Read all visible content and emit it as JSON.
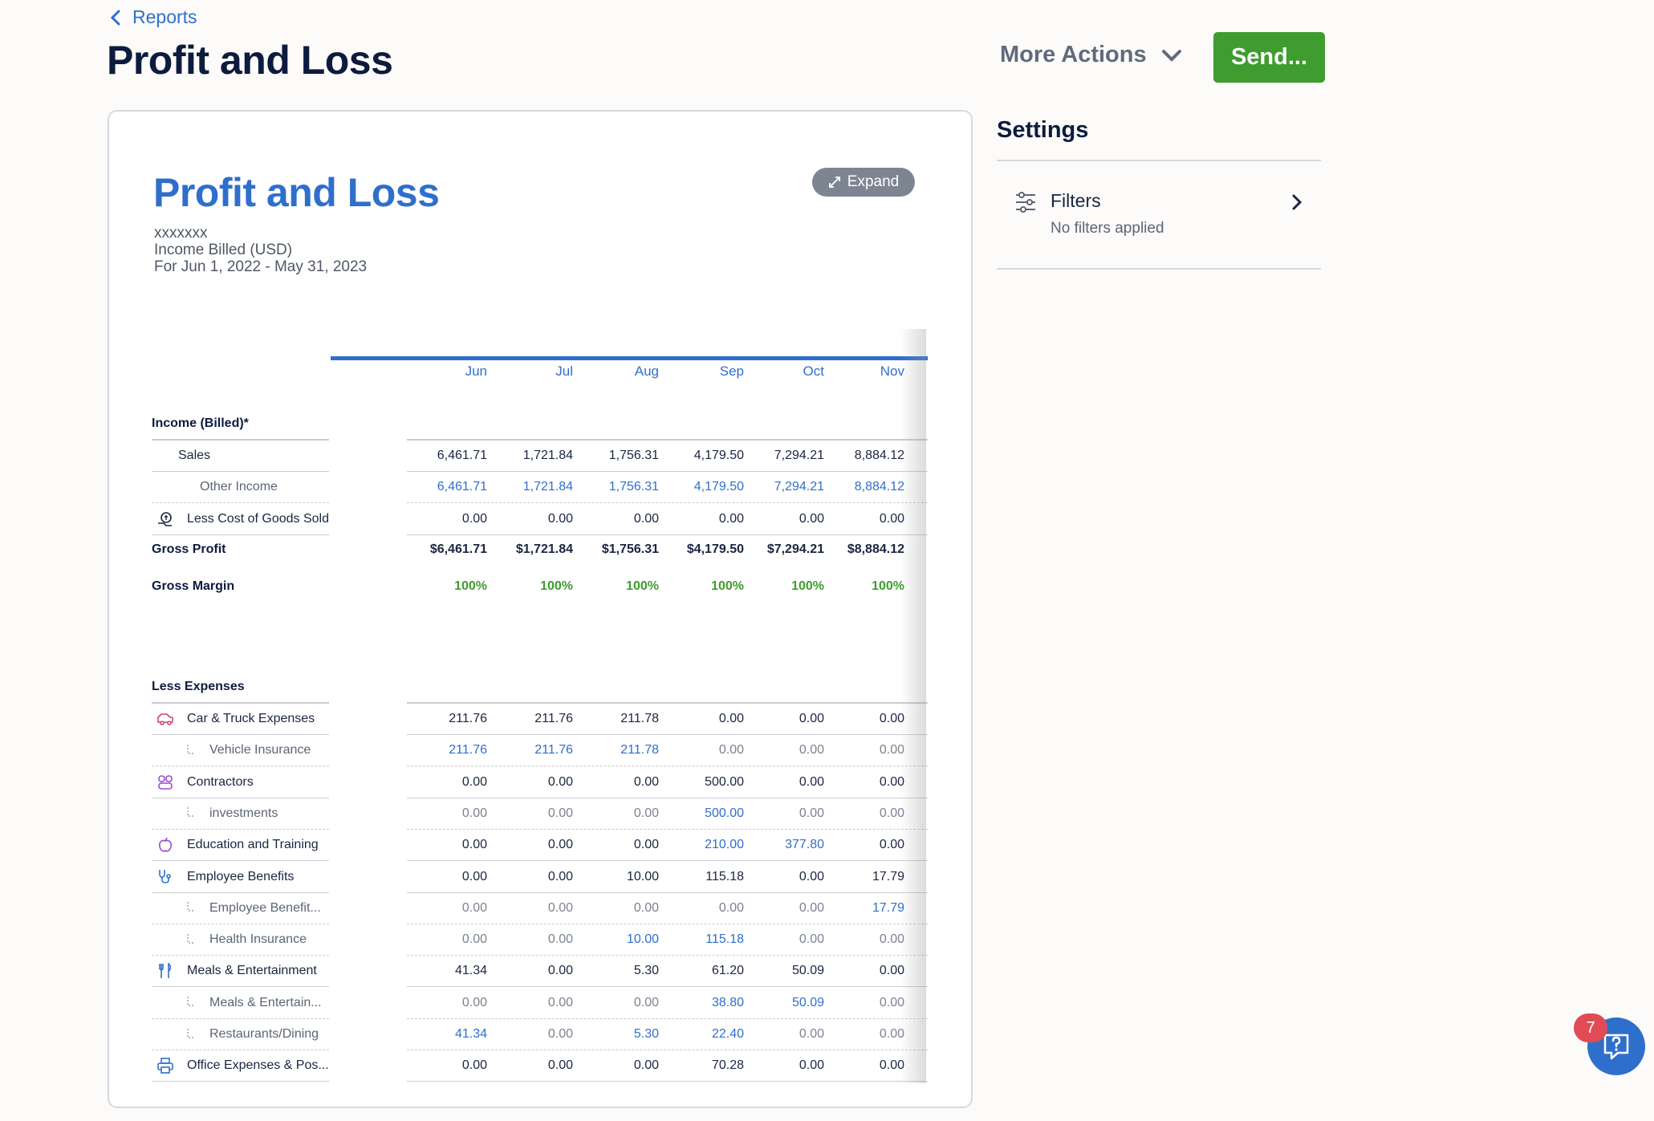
{
  "header": {
    "back_label": "Reports",
    "title": "Profit and Loss",
    "more_actions": "More Actions",
    "send": "Send..."
  },
  "report": {
    "title": "Profit and Loss",
    "expand": "Expand",
    "company": "xxxxxxx",
    "basis": "Income Billed (USD)",
    "period": "For Jun 1, 2022 - May 31, 2023",
    "months": [
      "Jun",
      "Jul",
      "Aug",
      "Sep",
      "Oct",
      "Nov"
    ],
    "income": {
      "heading": "Income (Billed)*",
      "rows": [
        {
          "label": "Sales",
          "sub": false,
          "icon": "",
          "values": [
            "6,461.71",
            "1,721.84",
            "1,756.31",
            "4,179.50",
            "7,294.21",
            "8,884.12"
          ],
          "styles": [
            "",
            "",
            "",
            "",
            "",
            ""
          ]
        },
        {
          "label": "Other Income",
          "sub": true,
          "icon": "",
          "values": [
            "6,461.71",
            "1,721.84",
            "1,756.31",
            "4,179.50",
            "7,294.21",
            "8,884.12"
          ],
          "styles": [
            "blue",
            "blue",
            "blue",
            "blue",
            "blue",
            "blue"
          ]
        },
        {
          "label": "Less Cost of Goods Sold",
          "sub": false,
          "icon": "goods-icon",
          "values": [
            "0.00",
            "0.00",
            "0.00",
            "0.00",
            "0.00",
            "0.00"
          ],
          "styles": [
            "",
            "",
            "",
            "",
            "",
            ""
          ]
        }
      ],
      "gross_profit_label": "Gross Profit",
      "gross_profit": [
        "$6,461.71",
        "$1,721.84",
        "$1,756.31",
        "$4,179.50",
        "$7,294.21",
        "$8,884.12"
      ],
      "gross_margin_label": "Gross Margin",
      "gross_margin": [
        "100%",
        "100%",
        "100%",
        "100%",
        "100%",
        "100%"
      ]
    },
    "expenses": {
      "heading": "Less Expenses",
      "rows": [
        {
          "label": "Car & Truck Expenses",
          "sub": false,
          "icon": "car-icon",
          "values": [
            "211.76",
            "211.76",
            "211.78",
            "0.00",
            "0.00",
            "0.00"
          ],
          "styles": [
            "",
            "",
            "",
            "",
            "",
            ""
          ]
        },
        {
          "label": "Vehicle Insurance",
          "sub": true,
          "icon": "",
          "values": [
            "211.76",
            "211.76",
            "211.78",
            "0.00",
            "0.00",
            "0.00"
          ],
          "styles": [
            "blue",
            "blue",
            "blue",
            "grey",
            "grey",
            "grey"
          ]
        },
        {
          "label": "Contractors",
          "sub": false,
          "icon": "contractors-icon",
          "values": [
            "0.00",
            "0.00",
            "0.00",
            "500.00",
            "0.00",
            "0.00"
          ],
          "styles": [
            "",
            "",
            "",
            "",
            "",
            ""
          ]
        },
        {
          "label": "investments",
          "sub": true,
          "icon": "",
          "values": [
            "0.00",
            "0.00",
            "0.00",
            "500.00",
            "0.00",
            "0.00"
          ],
          "styles": [
            "grey",
            "grey",
            "grey",
            "blue",
            "grey",
            "grey"
          ]
        },
        {
          "label": "Education and Training",
          "sub": false,
          "icon": "apple-icon",
          "values": [
            "0.00",
            "0.00",
            "0.00",
            "210.00",
            "377.80",
            "0.00"
          ],
          "styles": [
            "",
            "",
            "",
            "blue",
            "blue",
            ""
          ]
        },
        {
          "label": "Employee Benefits",
          "sub": false,
          "icon": "stethoscope-icon",
          "values": [
            "0.00",
            "0.00",
            "10.00",
            "115.18",
            "0.00",
            "17.79"
          ],
          "styles": [
            "",
            "",
            "",
            "",
            "",
            ""
          ]
        },
        {
          "label": "Employee Benefit...",
          "sub": true,
          "icon": "",
          "values": [
            "0.00",
            "0.00",
            "0.00",
            "0.00",
            "0.00",
            "17.79"
          ],
          "styles": [
            "grey",
            "grey",
            "grey",
            "grey",
            "grey",
            "blue"
          ]
        },
        {
          "label": "Health Insurance",
          "sub": true,
          "icon": "",
          "values": [
            "0.00",
            "0.00",
            "10.00",
            "115.18",
            "0.00",
            "0.00"
          ],
          "styles": [
            "grey",
            "grey",
            "blue",
            "blue",
            "grey",
            "grey"
          ]
        },
        {
          "label": "Meals & Entertainment",
          "sub": false,
          "icon": "utensils-icon",
          "values": [
            "41.34",
            "0.00",
            "5.30",
            "61.20",
            "50.09",
            "0.00"
          ],
          "styles": [
            "",
            "",
            "",
            "",
            "",
            ""
          ]
        },
        {
          "label": "Meals & Entertain...",
          "sub": true,
          "icon": "",
          "values": [
            "0.00",
            "0.00",
            "0.00",
            "38.80",
            "50.09",
            "0.00"
          ],
          "styles": [
            "grey",
            "grey",
            "grey",
            "blue",
            "blue",
            "grey"
          ]
        },
        {
          "label": "Restaurants/Dining",
          "sub": true,
          "icon": "",
          "values": [
            "41.34",
            "0.00",
            "5.30",
            "22.40",
            "0.00",
            "0.00"
          ],
          "styles": [
            "blue",
            "grey",
            "blue",
            "blue",
            "grey",
            "grey"
          ]
        },
        {
          "label": "Office Expenses & Pos...",
          "sub": false,
          "icon": "printer-icon",
          "values": [
            "0.00",
            "0.00",
            "0.00",
            "70.28",
            "0.00",
            "0.00"
          ],
          "styles": [
            "",
            "",
            "",
            "",
            "",
            ""
          ]
        }
      ]
    }
  },
  "settings": {
    "title": "Settings",
    "filters_label": "Filters",
    "filters_status": "No filters applied"
  },
  "help": {
    "badge": "7"
  },
  "colors": {
    "accent": "#2f6fcc",
    "send_green": "#3f9c2f",
    "margin_green": "#3f9c2f",
    "badge_red": "#e14b56"
  }
}
